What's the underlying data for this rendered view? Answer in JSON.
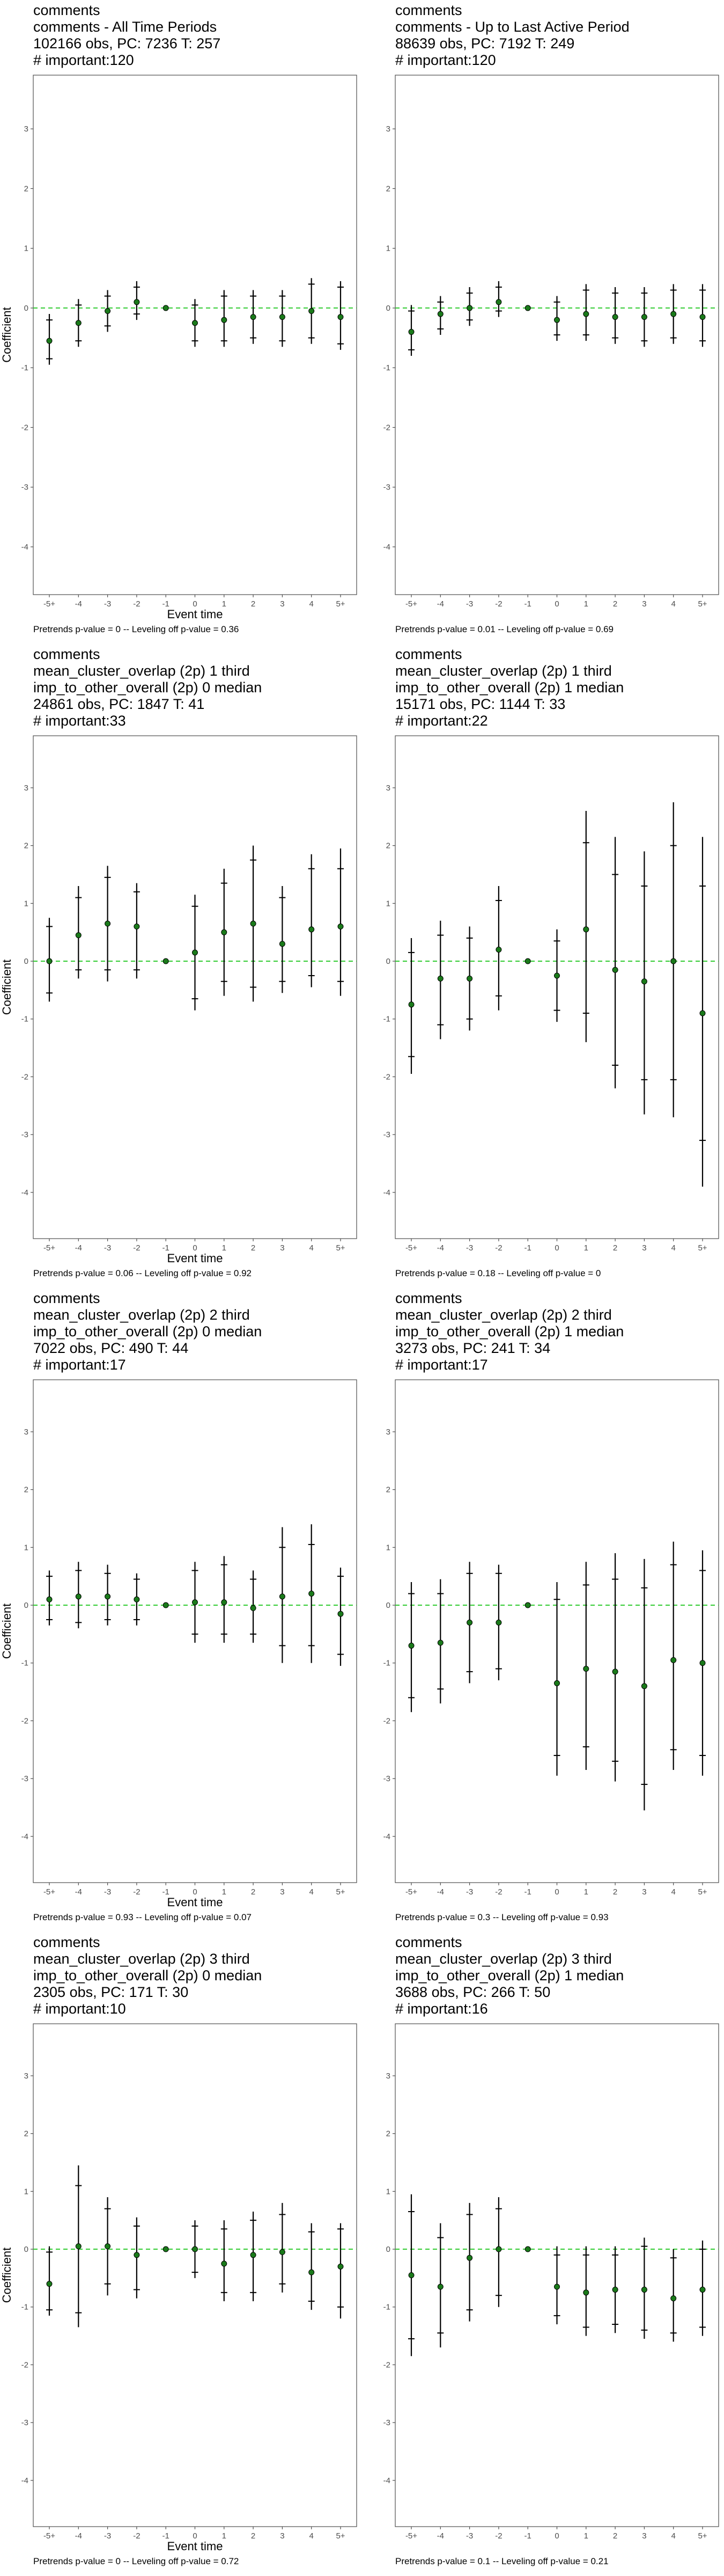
{
  "chart_data": [
    {
      "type": "scatter",
      "title_lines": [
        "comments",
        "comments - All Time Periods",
        "102166 obs, PC: 7236 T: 257",
        "# important:120"
      ],
      "xlabel": "Event time",
      "ylabel": "Coefficient",
      "categories": [
        "-5+",
        "-4",
        "-3",
        "-2",
        "-1",
        "0",
        "1",
        "2",
        "3",
        "4",
        "5+"
      ],
      "ylim": [
        -4.8,
        3.9
      ],
      "yticks": [
        -4,
        -3,
        -2,
        -1,
        0,
        1,
        2,
        3
      ],
      "estimates": [
        -0.55,
        -0.25,
        -0.05,
        0.1,
        0,
        -0.25,
        -0.2,
        -0.15,
        -0.15,
        -0.05,
        -0.15
      ],
      "ci95": [
        [
          -0.95,
          -0.1
        ],
        [
          -0.65,
          0.15
        ],
        [
          -0.4,
          0.3
        ],
        [
          -0.2,
          0.45
        ],
        [
          0,
          0
        ],
        [
          -0.65,
          0.15
        ],
        [
          -0.65,
          0.3
        ],
        [
          -0.6,
          0.3
        ],
        [
          -0.65,
          0.3
        ],
        [
          -0.6,
          0.5
        ],
        [
          -0.7,
          0.45
        ]
      ],
      "ci90": [
        [
          -0.85,
          -0.2
        ],
        [
          -0.55,
          0.05
        ],
        [
          -0.3,
          0.2
        ],
        [
          -0.1,
          0.35
        ],
        [
          0,
          0
        ],
        [
          -0.55,
          0.05
        ],
        [
          -0.55,
          0.2
        ],
        [
          -0.5,
          0.2
        ],
        [
          -0.55,
          0.2
        ],
        [
          -0.5,
          0.4
        ],
        [
          -0.6,
          0.35
        ]
      ],
      "footnote": "Pretrends p-value = 0 -- Leveling off p-value = 0.36"
    },
    {
      "type": "scatter",
      "title_lines": [
        "comments",
        "comments - Up to Last Active Period",
        "88639 obs, PC: 7192 T: 249",
        "# important:120"
      ],
      "xlabel": "",
      "ylabel": "",
      "categories": [
        "-5+",
        "-4",
        "-3",
        "-2",
        "-1",
        "0",
        "1",
        "2",
        "3",
        "4",
        "5+"
      ],
      "ylim": [
        -4.8,
        3.9
      ],
      "yticks": [
        -4,
        -3,
        -2,
        -1,
        0,
        1,
        2,
        3
      ],
      "estimates": [
        -0.4,
        -0.1,
        0,
        0.1,
        0,
        -0.2,
        -0.1,
        -0.15,
        -0.15,
        -0.1,
        -0.15
      ],
      "ci95": [
        [
          -0.8,
          0.05
        ],
        [
          -0.45,
          0.2
        ],
        [
          -0.3,
          0.35
        ],
        [
          -0.15,
          0.45
        ],
        [
          0,
          0
        ],
        [
          -0.55,
          0.2
        ],
        [
          -0.55,
          0.4
        ],
        [
          -0.6,
          0.35
        ],
        [
          -0.65,
          0.35
        ],
        [
          -0.6,
          0.4
        ],
        [
          -0.65,
          0.4
        ]
      ],
      "ci90": [
        [
          -0.7,
          -0.05
        ],
        [
          -0.35,
          0.1
        ],
        [
          -0.2,
          0.25
        ],
        [
          -0.05,
          0.35
        ],
        [
          0,
          0
        ],
        [
          -0.45,
          0.1
        ],
        [
          -0.45,
          0.3
        ],
        [
          -0.5,
          0.25
        ],
        [
          -0.55,
          0.25
        ],
        [
          -0.5,
          0.3
        ],
        [
          -0.55,
          0.3
        ]
      ],
      "footnote": "Pretrends p-value = 0.01 -- Leveling off p-value = 0.69"
    },
    {
      "type": "scatter",
      "title_lines": [
        "comments",
        "mean_cluster_overlap (2p) 1 third",
        "imp_to_other_overall (2p) 0 median",
        "24861 obs, PC: 1847 T: 41",
        "# important:33"
      ],
      "xlabel": "Event time",
      "ylabel": "Coefficient",
      "categories": [
        "-5+",
        "-4",
        "-3",
        "-2",
        "-1",
        "0",
        "1",
        "2",
        "3",
        "4",
        "5+"
      ],
      "ylim": [
        -4.8,
        3.9
      ],
      "yticks": [
        -4,
        -3,
        -2,
        -1,
        0,
        1,
        2,
        3
      ],
      "estimates": [
        0,
        0.45,
        0.65,
        0.6,
        0,
        0.15,
        0.5,
        0.65,
        0.3,
        0.55,
        0.6
      ],
      "ci95": [
        [
          -0.7,
          0.75
        ],
        [
          -0.3,
          1.3
        ],
        [
          -0.35,
          1.65
        ],
        [
          -0.3,
          1.35
        ],
        [
          0,
          0
        ],
        [
          -0.85,
          1.15
        ],
        [
          -0.6,
          1.6
        ],
        [
          -0.7,
          2.0
        ],
        [
          -0.55,
          1.3
        ],
        [
          -0.45,
          1.85
        ],
        [
          -0.6,
          1.95
        ]
      ],
      "ci90": [
        [
          -0.55,
          0.6
        ],
        [
          -0.15,
          1.1
        ],
        [
          -0.15,
          1.45
        ],
        [
          -0.15,
          1.2
        ],
        [
          0,
          0
        ],
        [
          -0.65,
          0.95
        ],
        [
          -0.35,
          1.35
        ],
        [
          -0.45,
          1.75
        ],
        [
          -0.35,
          1.1
        ],
        [
          -0.25,
          1.6
        ],
        [
          -0.35,
          1.6
        ]
      ],
      "footnote": "Pretrends p-value = 0.06 -- Leveling off p-value = 0.92"
    },
    {
      "type": "scatter",
      "title_lines": [
        "comments",
        "mean_cluster_overlap (2p) 1 third",
        "imp_to_other_overall (2p) 1 median",
        "15171 obs, PC: 1144 T: 33",
        "# important:22"
      ],
      "xlabel": "",
      "ylabel": "",
      "categories": [
        "-5+",
        "-4",
        "-3",
        "-2",
        "-1",
        "0",
        "1",
        "2",
        "3",
        "4",
        "5+"
      ],
      "ylim": [
        -4.8,
        3.9
      ],
      "yticks": [
        -4,
        -3,
        -2,
        -1,
        0,
        1,
        2,
        3
      ],
      "estimates": [
        -0.75,
        -0.3,
        -0.3,
        0.2,
        0,
        -0.25,
        0.55,
        -0.15,
        -0.35,
        0,
        -0.9
      ],
      "ci95": [
        [
          -1.95,
          0.4
        ],
        [
          -1.35,
          0.7
        ],
        [
          -1.2,
          0.6
        ],
        [
          -0.85,
          1.3
        ],
        [
          0,
          0
        ],
        [
          -1.05,
          0.55
        ],
        [
          -1.4,
          2.6
        ],
        [
          -2.2,
          2.15
        ],
        [
          -2.65,
          1.9
        ],
        [
          -2.7,
          2.75
        ],
        [
          -3.9,
          2.15
        ]
      ],
      "ci90": [
        [
          -1.65,
          0.15
        ],
        [
          -1.1,
          0.45
        ],
        [
          -1.0,
          0.4
        ],
        [
          -0.6,
          1.05
        ],
        [
          0,
          0
        ],
        [
          -0.85,
          0.35
        ],
        [
          -0.9,
          2.05
        ],
        [
          -1.8,
          1.5
        ],
        [
          -2.05,
          1.3
        ],
        [
          -2.05,
          2.0
        ],
        [
          -3.1,
          1.3
        ]
      ],
      "footnote": "Pretrends p-value = 0.18 -- Leveling off p-value = 0"
    },
    {
      "type": "scatter",
      "title_lines": [
        "comments",
        "mean_cluster_overlap (2p) 2 third",
        "imp_to_other_overall (2p) 0 median",
        "7022 obs, PC: 490 T: 44",
        "# important:17"
      ],
      "xlabel": "Event time",
      "ylabel": "Coefficient",
      "categories": [
        "-5+",
        "-4",
        "-3",
        "-2",
        "-1",
        "0",
        "1",
        "2",
        "3",
        "4",
        "5+"
      ],
      "ylim": [
        -4.8,
        3.9
      ],
      "yticks": [
        -4,
        -3,
        -2,
        -1,
        0,
        1,
        2,
        3
      ],
      "estimates": [
        0.1,
        0.15,
        0.15,
        0.1,
        0,
        0.05,
        0.05,
        -0.05,
        0.15,
        0.2,
        -0.15
      ],
      "ci95": [
        [
          -0.35,
          0.6
        ],
        [
          -0.4,
          0.75
        ],
        [
          -0.35,
          0.7
        ],
        [
          -0.35,
          0.55
        ],
        [
          0,
          0
        ],
        [
          -0.65,
          0.75
        ],
        [
          -0.65,
          0.85
        ],
        [
          -0.65,
          0.6
        ],
        [
          -1.0,
          1.35
        ],
        [
          -1.0,
          1.4
        ],
        [
          -1.05,
          0.65
        ]
      ],
      "ci90": [
        [
          -0.25,
          0.5
        ],
        [
          -0.3,
          0.6
        ],
        [
          -0.25,
          0.55
        ],
        [
          -0.25,
          0.45
        ],
        [
          0,
          0
        ],
        [
          -0.5,
          0.6
        ],
        [
          -0.5,
          0.7
        ],
        [
          -0.5,
          0.45
        ],
        [
          -0.7,
          1.0
        ],
        [
          -0.7,
          1.05
        ],
        [
          -0.85,
          0.5
        ]
      ],
      "footnote": "Pretrends p-value = 0.93 -- Leveling off p-value = 0.07"
    },
    {
      "type": "scatter",
      "title_lines": [
        "comments",
        "mean_cluster_overlap (2p) 2 third",
        "imp_to_other_overall (2p) 1 median",
        "3273 obs, PC: 241 T: 34",
        "# important:17"
      ],
      "xlabel": "",
      "ylabel": "",
      "categories": [
        "-5+",
        "-4",
        "-3",
        "-2",
        "-1",
        "0",
        "1",
        "2",
        "3",
        "4",
        "5+"
      ],
      "ylim": [
        -4.8,
        3.9
      ],
      "yticks": [
        -4,
        -3,
        -2,
        -1,
        0,
        1,
        2,
        3
      ],
      "estimates": [
        -0.7,
        -0.65,
        -0.3,
        -0.3,
        0,
        -1.35,
        -1.1,
        -1.15,
        -1.4,
        -0.95,
        -1.0
      ],
      "ci95": [
        [
          -1.85,
          0.4
        ],
        [
          -1.7,
          0.45
        ],
        [
          -1.35,
          0.75
        ],
        [
          -1.3,
          0.7
        ],
        [
          0,
          0
        ],
        [
          -2.95,
          0.4
        ],
        [
          -2.85,
          0.75
        ],
        [
          -3.05,
          0.9
        ],
        [
          -3.55,
          0.8
        ],
        [
          -2.85,
          1.1
        ],
        [
          -2.95,
          0.95
        ]
      ],
      "ci90": [
        [
          -1.6,
          0.2
        ],
        [
          -1.45,
          0.2
        ],
        [
          -1.15,
          0.55
        ],
        [
          -1.1,
          0.55
        ],
        [
          0,
          0
        ],
        [
          -2.6,
          0.1
        ],
        [
          -2.45,
          0.35
        ],
        [
          -2.7,
          0.45
        ],
        [
          -3.1,
          0.3
        ],
        [
          -2.5,
          0.7
        ],
        [
          -2.6,
          0.6
        ]
      ],
      "footnote": "Pretrends p-value = 0.3 -- Leveling off p-value = 0.93"
    },
    {
      "type": "scatter",
      "title_lines": [
        "comments",
        "mean_cluster_overlap (2p) 3 third",
        "imp_to_other_overall (2p) 0 median",
        "2305 obs, PC: 171 T: 30",
        "# important:10"
      ],
      "xlabel": "Event time",
      "ylabel": "Coefficient",
      "categories": [
        "-5+",
        "-4",
        "-3",
        "-2",
        "-1",
        "0",
        "1",
        "2",
        "3",
        "4",
        "5+"
      ],
      "ylim": [
        -4.8,
        3.9
      ],
      "yticks": [
        -4,
        -3,
        -2,
        -1,
        0,
        1,
        2,
        3
      ],
      "estimates": [
        -0.6,
        0.05,
        0.05,
        -0.1,
        0,
        0,
        -0.25,
        -0.1,
        -0.05,
        -0.4,
        -0.3
      ],
      "ci95": [
        [
          -1.15,
          0.05
        ],
        [
          -1.35,
          1.45
        ],
        [
          -0.8,
          0.9
        ],
        [
          -0.85,
          0.55
        ],
        [
          0,
          0
        ],
        [
          -0.5,
          0.5
        ],
        [
          -0.9,
          0.5
        ],
        [
          -0.9,
          0.65
        ],
        [
          -0.75,
          0.8
        ],
        [
          -1.05,
          0.45
        ],
        [
          -1.2,
          0.45
        ]
      ],
      "ci90": [
        [
          -1.05,
          -0.05
        ],
        [
          -1.1,
          1.1
        ],
        [
          -0.6,
          0.7
        ],
        [
          -0.7,
          0.4
        ],
        [
          0,
          0
        ],
        [
          -0.4,
          0.4
        ],
        [
          -0.75,
          0.35
        ],
        [
          -0.75,
          0.5
        ],
        [
          -0.6,
          0.6
        ],
        [
          -0.9,
          0.3
        ],
        [
          -1.0,
          0.35
        ]
      ],
      "footnote": "Pretrends p-value = 0 -- Leveling off p-value = 0.72"
    },
    {
      "type": "scatter",
      "title_lines": [
        "comments",
        "mean_cluster_overlap (2p) 3 third",
        "imp_to_other_overall (2p) 1 median",
        "3688 obs, PC: 266 T: 50",
        "# important:16"
      ],
      "xlabel": "",
      "ylabel": "",
      "categories": [
        "-5+",
        "-4",
        "-3",
        "-2",
        "-1",
        "0",
        "1",
        "2",
        "3",
        "4",
        "5+"
      ],
      "ylim": [
        -4.8,
        3.9
      ],
      "yticks": [
        -4,
        -3,
        -2,
        -1,
        0,
        1,
        2,
        3
      ],
      "estimates": [
        -0.45,
        -0.65,
        -0.15,
        0,
        0,
        -0.65,
        -0.75,
        -0.7,
        -0.7,
        -0.85,
        -0.7
      ],
      "ci95": [
        [
          -1.85,
          0.95
        ],
        [
          -1.7,
          0.45
        ],
        [
          -1.25,
          0.8
        ],
        [
          -1.0,
          0.9
        ],
        [
          0,
          0
        ],
        [
          -1.3,
          0.05
        ],
        [
          -1.5,
          0.05
        ],
        [
          -1.45,
          0.05
        ],
        [
          -1.55,
          0.2
        ],
        [
          -1.6,
          0.0
        ],
        [
          -1.5,
          0.15
        ]
      ],
      "ci90": [
        [
          -1.55,
          0.65
        ],
        [
          -1.45,
          0.2
        ],
        [
          -1.05,
          0.6
        ],
        [
          -0.8,
          0.7
        ],
        [
          0,
          0
        ],
        [
          -1.15,
          -0.1
        ],
        [
          -1.35,
          -0.1
        ],
        [
          -1.3,
          -0.1
        ],
        [
          -1.4,
          0.05
        ],
        [
          -1.45,
          -0.15
        ],
        [
          -1.35,
          0.0
        ]
      ],
      "footnote": "Pretrends p-value = 0.1 -- Leveling off p-value = 0.21"
    }
  ]
}
